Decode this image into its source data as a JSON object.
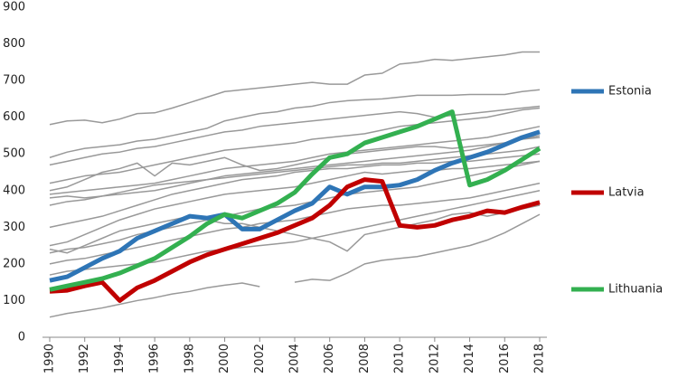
{
  "chart_data": {
    "type": "line",
    "x": [
      1990,
      1991,
      1992,
      1993,
      1994,
      1995,
      1996,
      1997,
      1998,
      1999,
      2000,
      2001,
      2002,
      2003,
      2004,
      2005,
      2006,
      2007,
      2008,
      2009,
      2010,
      2011,
      2012,
      2013,
      2014,
      2015,
      2016,
      2017,
      2018
    ],
    "xlim": [
      1990,
      2018
    ],
    "xticks": [
      1990,
      1992,
      1994,
      1996,
      1998,
      2000,
      2002,
      2004,
      2006,
      2008,
      2010,
      2012,
      2014,
      2016,
      2018
    ],
    "ylim": [
      0,
      900
    ],
    "yticks": [
      0,
      100,
      200,
      300,
      400,
      500,
      600,
      700,
      800,
      900
    ],
    "series": [
      {
        "color": "#999999",
        "values": [
          580,
          590,
          592,
          585,
          595,
          610,
          612,
          625,
          640,
          655,
          670,
          675,
          680,
          685,
          690,
          695,
          690,
          690,
          715,
          720,
          745,
          750,
          758,
          755,
          760,
          765,
          770,
          778,
          778
        ]
      },
      {
        "color": "#999999",
        "values": [
          490,
          505,
          515,
          520,
          525,
          535,
          540,
          550,
          560,
          570,
          590,
          600,
          610,
          615,
          625,
          630,
          640,
          645,
          648,
          650,
          655,
          660,
          660,
          660,
          662,
          662,
          662,
          670,
          675
        ]
      },
      {
        "color": "#999999",
        "values": [
          470,
          480,
          490,
          500,
          505,
          515,
          520,
          530,
          540,
          550,
          560,
          565,
          575,
          580,
          585,
          590,
          595,
          600,
          605,
          610,
          615,
          610,
          600,
          605,
          610,
          615,
          620,
          625,
          630
        ]
      },
      {
        "color": "#999999",
        "values": [
          420,
          430,
          440,
          445,
          450,
          460,
          470,
          480,
          490,
          500,
          510,
          515,
          520,
          525,
          530,
          540,
          545,
          550,
          555,
          565,
          575,
          580,
          585,
          590,
          595,
          600,
          610,
          620,
          625
        ]
      },
      {
        "color": "#999999",
        "values": [
          390,
          395,
          400,
          405,
          410,
          415,
          420,
          430,
          440,
          450,
          460,
          465,
          470,
          475,
          480,
          490,
          500,
          505,
          510,
          515,
          520,
          525,
          530,
          535,
          540,
          545,
          555,
          565,
          575
        ]
      },
      {
        "color": "#999999",
        "values": [
          380,
          385,
          380,
          385,
          390,
          395,
          400,
          410,
          420,
          430,
          440,
          445,
          450,
          455,
          460,
          465,
          470,
          475,
          480,
          485,
          490,
          495,
          500,
          505,
          510,
          520,
          530,
          540,
          550
        ]
      },
      {
        "color": "#999999",
        "values": [
          360,
          370,
          375,
          385,
          395,
          405,
          415,
          420,
          425,
          430,
          435,
          440,
          445,
          450,
          455,
          460,
          465,
          470,
          470,
          475,
          475,
          480,
          485,
          490,
          495,
          500,
          505,
          510,
          520
        ]
      },
      {
        "color": "#999999",
        "values": [
          300,
          310,
          320,
          330,
          345,
          360,
          375,
          390,
          400,
          410,
          420,
          430,
          435,
          440,
          450,
          455,
          460,
          460,
          465,
          470,
          470,
          475,
          475,
          480,
          480,
          485,
          490,
          495,
          500
        ]
      },
      {
        "color": "#999999",
        "values": [
          250,
          260,
          280,
          300,
          320,
          335,
          350,
          360,
          370,
          380,
          390,
          395,
          400,
          405,
          410,
          420,
          430,
          440,
          450,
          445,
          450,
          455,
          455,
          460,
          460,
          465,
          470,
          475,
          480
        ]
      },
      {
        "color": "#999999",
        "values": [
          230,
          240,
          245,
          255,
          265,
          280,
          290,
          300,
          310,
          320,
          330,
          340,
          350,
          355,
          360,
          370,
          380,
          390,
          395,
          400,
          405,
          410,
          420,
          430,
          440,
          450,
          460,
          470,
          480
        ]
      },
      {
        "color": "#999999",
        "values": [
          200,
          210,
          215,
          225,
          235,
          245,
          255,
          265,
          275,
          285,
          295,
          300,
          310,
          315,
          320,
          330,
          340,
          350,
          355,
          360,
          360,
          365,
          370,
          375,
          380,
          390,
          400,
          410,
          420
        ]
      },
      {
        "color": "#999999",
        "values": [
          170,
          180,
          185,
          190,
          195,
          200,
          205,
          215,
          225,
          235,
          240,
          245,
          250,
          255,
          260,
          270,
          280,
          290,
          300,
          310,
          320,
          330,
          340,
          350,
          360,
          370,
          380,
          390,
          400
        ]
      },
      {
        "color": "#999999",
        "values": [
          55,
          65,
          72,
          80,
          90,
          100,
          108,
          118,
          125,
          135,
          142,
          148,
          138,
          null,
          150,
          158,
          155,
          175,
          200,
          210,
          215,
          220,
          230,
          240,
          250,
          265,
          285,
          310,
          335
        ]
      },
      {
        "color": "#999999",
        "values": [
          400,
          410,
          430,
          450,
          460,
          475,
          440,
          475,
          470,
          480,
          490,
          470,
          455,
          460,
          470,
          480,
          490,
          500,
          505,
          510,
          515,
          520,
          520,
          515,
          520,
          525,
          530,
          540,
          545
        ]
      },
      {
        "color": "#999999",
        "values": [
          240,
          230,
          250,
          270,
          290,
          300,
          310,
          320,
          330,
          320,
          310,
          310,
          300,
          290,
          280,
          270,
          260,
          235,
          280,
          290,
          300,
          310,
          320,
          335,
          340,
          330,
          340,
          350,
          360
        ]
      },
      {
        "name": "Estonia",
        "color": "#2e75b6",
        "values": [
          155,
          165,
          190,
          215,
          235,
          270,
          290,
          310,
          330,
          325,
          335,
          295,
          295,
          320,
          345,
          365,
          410,
          390,
          410,
          410,
          415,
          430,
          455,
          475,
          490,
          505,
          525,
          545,
          560
        ]
      },
      {
        "name": "Latvia",
        "color": "#c00000",
        "values": [
          125,
          128,
          140,
          150,
          100,
          135,
          155,
          180,
          205,
          225,
          240,
          255,
          270,
          285,
          305,
          325,
          360,
          410,
          430,
          425,
          305,
          300,
          305,
          320,
          330,
          345,
          340,
          355,
          368
        ]
      },
      {
        "name": "Lithuania",
        "color": "#33b050",
        "values": [
          130,
          140,
          150,
          160,
          175,
          195,
          215,
          245,
          275,
          310,
          335,
          325,
          345,
          365,
          395,
          445,
          490,
          500,
          530,
          545,
          560,
          575,
          595,
          615,
          415,
          430,
          455,
          485,
          515
        ]
      }
    ]
  }
}
